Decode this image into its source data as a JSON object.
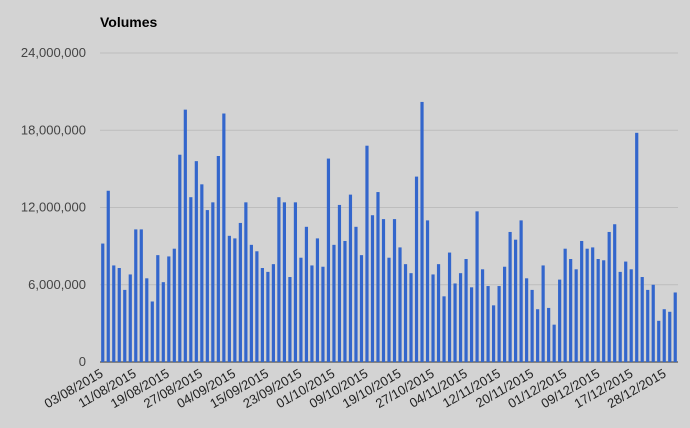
{
  "chart_data": {
    "type": "bar",
    "title": "Volumes",
    "xlabel": "",
    "ylabel": "",
    "ylim": [
      0,
      24000000
    ],
    "yticks": [
      "0",
      "6,000,000",
      "12,000,000",
      "18,000,000",
      "24,000,000"
    ],
    "grid": true,
    "legend": "none",
    "bar_color": "#3366cc",
    "x_tick_labels": [
      "03/08/2015",
      "11/08/2015",
      "19/08/2015",
      "27/08/2015",
      "04/09/2015",
      "15/09/2015",
      "23/09/2015",
      "01/10/2015",
      "09/10/2015",
      "19/10/2015",
      "27/10/2015",
      "04/11/2015",
      "12/11/2015",
      "20/11/2015",
      "01/12/2015",
      "09/12/2015",
      "17/12/2015",
      "28/12/2015"
    ],
    "values": [
      9200000,
      13300000,
      7500000,
      7300000,
      5600000,
      6800000,
      10300000,
      10300000,
      6500000,
      4700000,
      8300000,
      6200000,
      8200000,
      8800000,
      16100000,
      19600000,
      12800000,
      15600000,
      13800000,
      11800000,
      12400000,
      16000000,
      19300000,
      9800000,
      9600000,
      10800000,
      12400000,
      9100000,
      8600000,
      7300000,
      7000000,
      7600000,
      12800000,
      12400000,
      6600000,
      12400000,
      8100000,
      10500000,
      7500000,
      9600000,
      7400000,
      15800000,
      9100000,
      12200000,
      9400000,
      13000000,
      10500000,
      8300000,
      16800000,
      11400000,
      13200000,
      11100000,
      8100000,
      11100000,
      8900000,
      7600000,
      6900000,
      14400000,
      20200000,
      11000000,
      6800000,
      7600000,
      5100000,
      8500000,
      6100000,
      6900000,
      8000000,
      5800000,
      11700000,
      7200000,
      5900000,
      4400000,
      5900000,
      7400000,
      10100000,
      9500000,
      11000000,
      6500000,
      5600000,
      4100000,
      7500000,
      4200000,
      2900000,
      6400000,
      8800000,
      8000000,
      7200000,
      9400000,
      8800000,
      8900000,
      8000000,
      7900000,
      10100000,
      10700000,
      7000000,
      7800000,
      7200000,
      17800000,
      6600000,
      5600000,
      6000000,
      3200000,
      4100000,
      3900000,
      5400000
    ]
  }
}
